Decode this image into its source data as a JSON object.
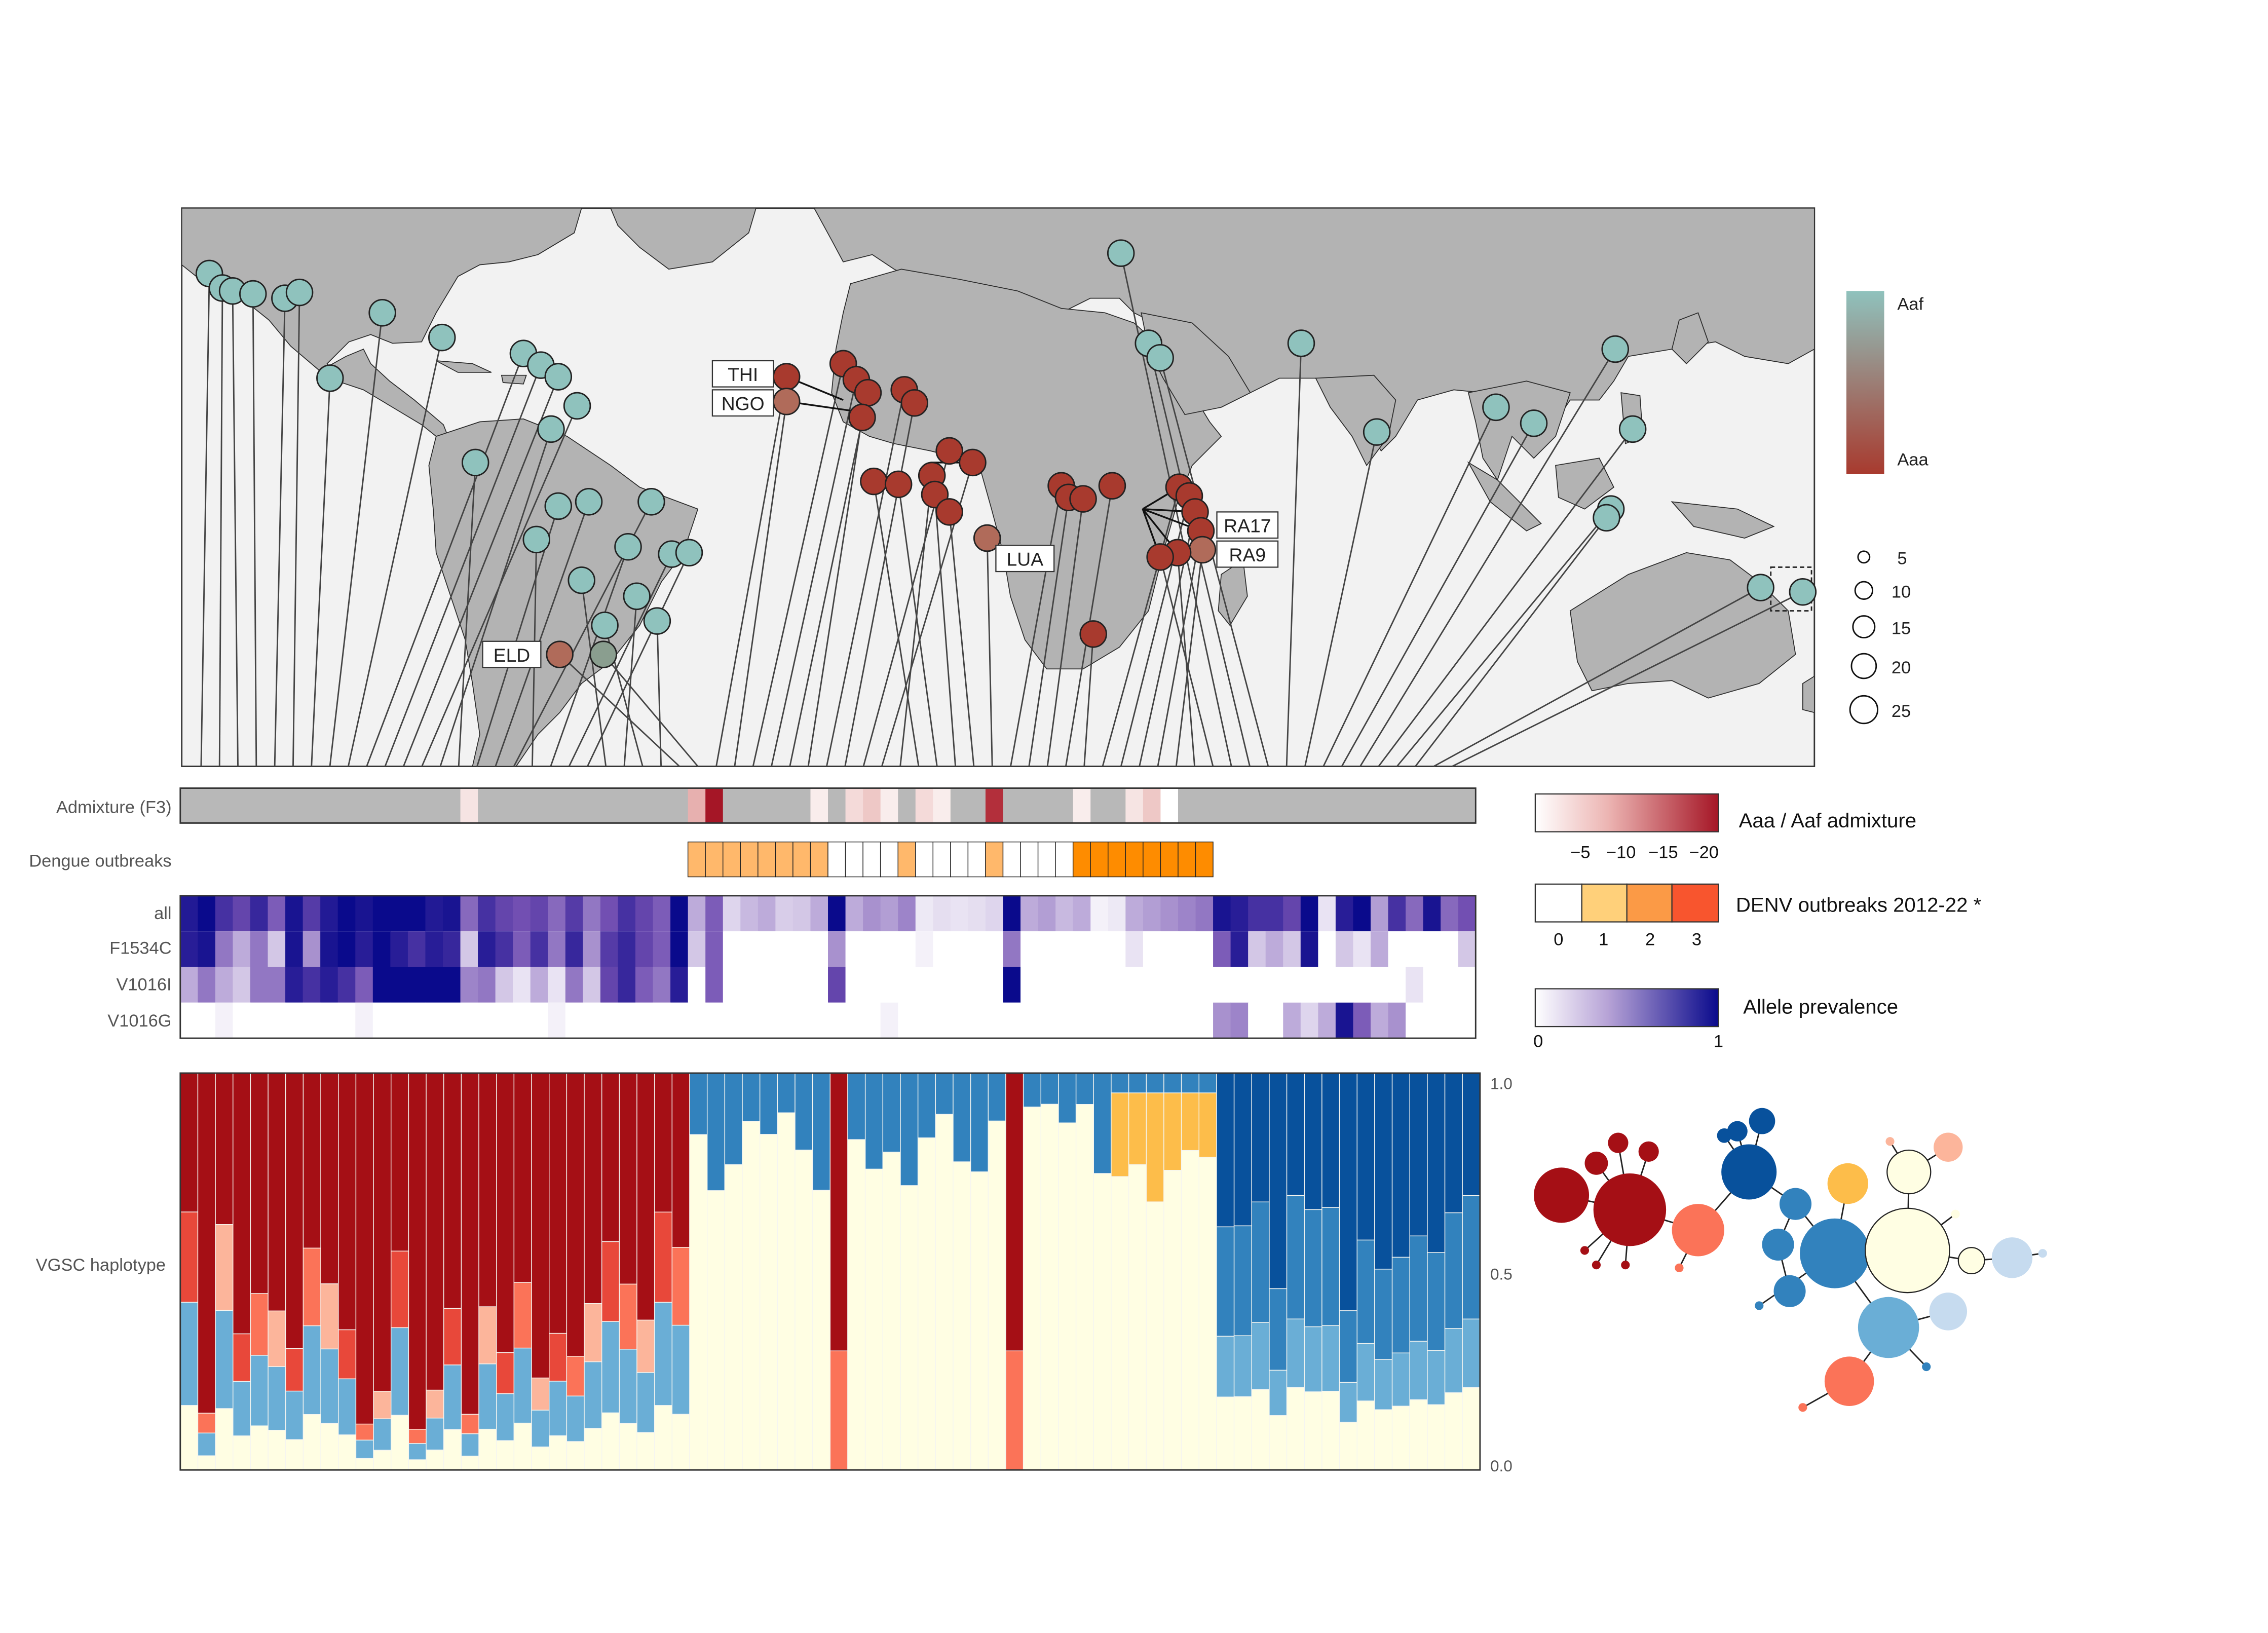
{
  "colors": {
    "aaf": "#8fc2bd",
    "aaa": "#a83a2e",
    "land": "#b3b3b3",
    "ocean": "#f2f2f2",
    "missing": "#b8b8b8",
    "admix_scale": [
      "#ffffff",
      "#ecc2c0",
      "#d4696c",
      "#a51626"
    ],
    "denv_scale": [
      "#ffffff",
      "#ffd07a",
      "#fb9a46",
      "#f8552e"
    ],
    "allele_scale": [
      "#ffffff",
      "#b6a2d6",
      "#6e4bb0",
      "#0a0a8c"
    ],
    "haplo": [
      "#a50f15",
      "#e8483a",
      "#fb7358",
      "#fcb59b",
      "#fddbc7",
      "#fffee3",
      "#fdbd4a",
      "#c6dbef",
      "#6aaed6",
      "#3282bd",
      "#08519c"
    ]
  },
  "map": {
    "callouts": [
      "THI",
      "NGO",
      "LUA",
      "ELD",
      "RA17",
      "RA9"
    ],
    "legend": {
      "gradient_top": "Aaf",
      "gradient_bottom": "Aaa",
      "size_labels": [
        "5",
        "10",
        "15",
        "20",
        "25"
      ]
    }
  },
  "rows": {
    "admixture_label": "Admixture (F3)",
    "dengue_label": "Dengue outbreaks",
    "allele_labels": [
      "all",
      "F1534C",
      "V1016I",
      "V1016G"
    ],
    "haplotype_label": "VGSC haplotype",
    "haplotype_axis": [
      "1.0",
      "0.5",
      "0.0"
    ]
  },
  "legends": {
    "admixture": {
      "title": "Aaa / Aaf admixture",
      "ticks": [
        "−5",
        "−10",
        "−15",
        "−20"
      ]
    },
    "denv": {
      "title": "DENV outbreaks 2012-22 *",
      "ticks": [
        "0",
        "1",
        "2",
        "3"
      ]
    },
    "allele": {
      "title": "Allele prevalence",
      "ticks": [
        "0",
        "1"
      ]
    }
  },
  "chart_data": {
    "type": "heatmap",
    "n_populations": 74,
    "admixture_f3": [
      null,
      null,
      null,
      null,
      null,
      null,
      null,
      null,
      null,
      null,
      null,
      null,
      null,
      null,
      null,
      null,
      -3,
      null,
      null,
      null,
      null,
      null,
      null,
      null,
      null,
      null,
      null,
      null,
      null,
      -8,
      -20,
      null,
      null,
      null,
      null,
      null,
      -2,
      null,
      -4,
      -6,
      -2,
      null,
      -4,
      -2,
      null,
      null,
      -18,
      null,
      null,
      null,
      null,
      -2,
      null,
      null,
      -3,
      -6,
      0,
      null,
      null,
      null,
      null,
      null,
      null,
      null,
      null,
      null,
      null,
      null,
      null,
      null,
      null,
      null,
      null,
      null
    ],
    "dengue_outbreaks": [
      null,
      null,
      null,
      null,
      null,
      null,
      null,
      null,
      null,
      null,
      null,
      null,
      null,
      null,
      null,
      null,
      null,
      null,
      null,
      null,
      null,
      null,
      null,
      null,
      null,
      null,
      null,
      null,
      null,
      1,
      1,
      1,
      1,
      1,
      1,
      1,
      1,
      0,
      0,
      0,
      0,
      1,
      0,
      0,
      0,
      0,
      1,
      0,
      0,
      0,
      0,
      2,
      2,
      2,
      2,
      2,
      2,
      2,
      2,
      null,
      null,
      null,
      null,
      null,
      null,
      null,
      null,
      null,
      null,
      null,
      null,
      null,
      null,
      null
    ],
    "allele_prevalence": {
      "all": [
        0.92,
        1,
        0.8,
        0.7,
        0.85,
        0.6,
        0.95,
        0.75,
        0.92,
        1,
        0.95,
        1,
        1,
        1,
        0.92,
        0.95,
        0.55,
        0.8,
        0.7,
        0.65,
        0.7,
        0.55,
        0.75,
        0.5,
        0.65,
        0.8,
        0.7,
        0.6,
        1,
        0.3,
        0.6,
        0.15,
        0.25,
        0.3,
        0.18,
        0.2,
        0.3,
        1,
        0.3,
        0.4,
        0.35,
        0.45,
        0.08,
        0.12,
        0.1,
        0.12,
        0.15,
        1,
        0.3,
        0.35,
        0.25,
        0.3,
        0.05,
        0.08,
        0.3,
        0.35,
        0.4,
        0.45,
        0.5,
        0.95,
        0.9,
        0.8,
        0.8,
        0.7,
        1,
        0.1,
        0.9,
        1,
        0.35,
        0.8,
        0.55,
        0.95,
        0.55,
        0.65
      ],
      "F1534C": [
        0.9,
        0.95,
        0.5,
        0.3,
        0.5,
        0.2,
        0.95,
        0.4,
        0.95,
        1,
        0.9,
        1,
        0.9,
        0.8,
        0.9,
        0.85,
        0.2,
        0.9,
        0.8,
        0.6,
        0.8,
        0.5,
        0.85,
        0.4,
        0.75,
        0.85,
        0.7,
        0.6,
        1,
        0.2,
        0.6,
        0,
        0,
        0,
        0,
        0,
        0,
        0.4,
        0,
        0,
        0,
        0,
        0.05,
        0,
        0,
        0,
        0,
        0.5,
        0,
        0,
        0,
        0,
        0,
        0,
        0.1,
        0,
        0,
        0,
        0,
        0.6,
        0.9,
        0.2,
        0.3,
        0.2,
        0.95,
        0,
        0.2,
        0.1,
        0.3,
        0,
        0,
        0,
        0,
        0.2
      ],
      "V1016I": [
        0.3,
        0.5,
        0.3,
        0.2,
        0.5,
        0.5,
        0.9,
        0.8,
        0.9,
        0.8,
        0.6,
        1,
        1,
        1,
        1,
        1,
        0.45,
        0.5,
        0.2,
        0.1,
        0.3,
        0.1,
        0.5,
        0.2,
        0.7,
        0.85,
        0.6,
        0.5,
        0.9,
        0,
        0.6,
        0,
        0,
        0,
        0,
        0,
        0,
        0.7,
        0,
        0,
        0,
        0,
        0,
        0,
        0,
        0,
        0,
        1,
        0,
        0,
        0,
        0,
        0,
        0,
        0,
        0,
        0,
        0,
        0,
        0,
        0,
        0,
        0,
        0,
        0,
        0,
        0,
        0,
        0,
        0,
        0.1,
        0,
        0,
        0
      ],
      "V1016G": [
        0,
        0,
        0.05,
        0,
        0,
        0,
        0,
        0,
        0,
        0,
        0.05,
        0,
        0,
        0,
        0,
        0,
        0,
        0,
        0,
        0,
        0,
        0.05,
        0,
        0,
        0,
        0,
        0,
        0,
        0,
        0,
        0,
        0,
        0,
        0,
        0,
        0,
        0,
        0,
        0,
        0,
        0.05,
        0,
        0,
        0,
        0,
        0,
        0,
        0,
        0,
        0,
        0,
        0,
        0,
        0,
        0,
        0,
        0,
        0,
        0,
        0.4,
        0.45,
        0,
        0,
        0.3,
        0.15,
        0.3,
        0.95,
        0.6,
        0.3,
        0.4,
        0,
        0,
        0,
        0
      ]
    },
    "haplotype_ylim": [
      0,
      1
    ]
  }
}
